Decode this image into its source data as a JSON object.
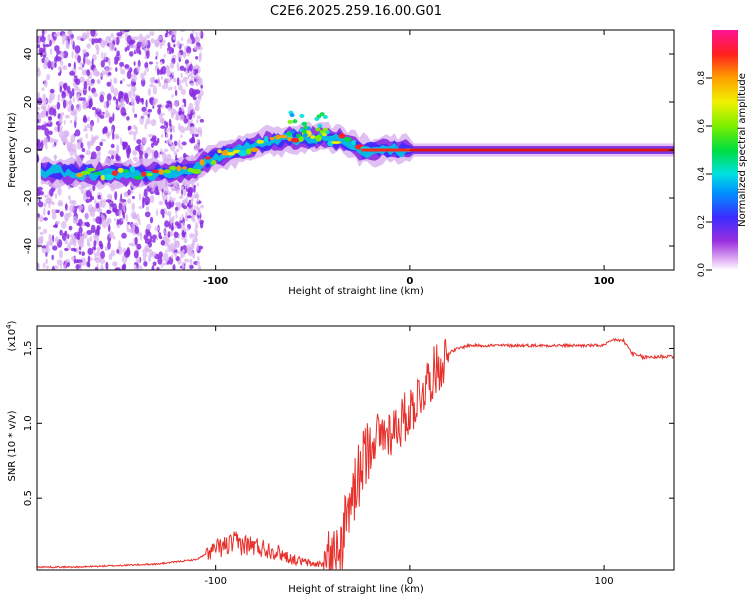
{
  "title": "C2E6.2025.259.16.00.G01",
  "colors": {
    "trace": "#e8302b",
    "axis": "#000000",
    "background": "#ffffff"
  },
  "chart_data": [
    {
      "type": "heatmap",
      "name": "spectrogram",
      "title": "C2E6.2025.259.16.00.G01",
      "xlabel": "Height of straight line (km)",
      "ylabel": "Frequency (Hz)",
      "xlim": [
        -192,
        136
      ],
      "ylim": [
        -50,
        50
      ],
      "xticks": [
        -100,
        0,
        100
      ],
      "yticks": [
        -40,
        -20,
        0,
        20,
        40
      ],
      "colorbar": {
        "label": "Normalized spectral amplitude",
        "range": [
          0,
          1
        ],
        "ticks": [
          "0.0",
          "0.2",
          "0.4",
          "0.6",
          "0.8"
        ],
        "tick_values": [
          0.0,
          0.2,
          0.4,
          0.6,
          0.8
        ]
      },
      "ridge": {
        "x": [
          -190,
          -160,
          -140,
          -120,
          -112,
          -100,
          -80,
          -60,
          -45,
          -35,
          -25,
          0,
          50,
          136
        ],
        "y": [
          -9,
          -10,
          -10,
          -9,
          -8,
          -3,
          2,
          5,
          5,
          4,
          0,
          0,
          0,
          0
        ]
      }
    },
    {
      "type": "line",
      "name": "snr",
      "xlabel": "Height of straight line (km)",
      "ylabel": "SNR (10 * v/v)",
      "scale_label": "(x10",
      "scale_exp": "4",
      "xlim": [
        -192,
        136
      ],
      "ylim": [
        0.02,
        1.65
      ],
      "xticks": [
        -100,
        0,
        100
      ],
      "yticks": [
        0.5,
        1.0,
        1.5
      ],
      "ytick_labels": [
        "0.5",
        "1.0",
        "1.5"
      ],
      "series": [
        {
          "name": "SNR",
          "x": [
            -192,
            -170,
            -150,
            -130,
            -110,
            -100,
            -90,
            -80,
            -70,
            -60,
            -50,
            -40,
            -35,
            -30,
            -25,
            -20,
            -15,
            -10,
            -5,
            0,
            10,
            20,
            25,
            30,
            40,
            60,
            80,
            100,
            105,
            110,
            115,
            120,
            136
          ],
          "values": [
            0.04,
            0.04,
            0.05,
            0.06,
            0.09,
            0.16,
            0.2,
            0.18,
            0.15,
            0.09,
            0.06,
            0.06,
            0.2,
            0.5,
            0.7,
            0.9,
            0.92,
            0.95,
            1.0,
            1.08,
            1.3,
            1.47,
            1.5,
            1.52,
            1.52,
            1.52,
            1.52,
            1.52,
            1.56,
            1.55,
            1.46,
            1.44,
            1.45
          ]
        }
      ]
    }
  ]
}
